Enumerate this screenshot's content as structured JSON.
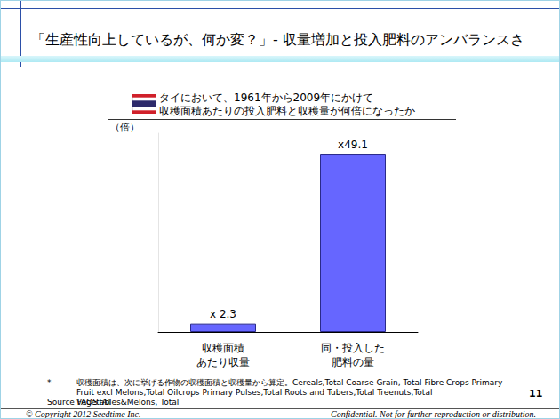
{
  "slide": {
    "title": "「生産性向上しているが、何か変？」- 収量増加と投入肥料のアンバランスさ",
    "footnote_mark": "*",
    "footnote": "収穫面積は、次に挙げる作物の収穫面積と収穫量から算定。Cereals,Total Coarse Grain, Total Fibre Crops Primary Fruit excl Melons,Total Oilcrops Primary Pulses,Total Roots and Tubers,Total Treenuts,Total Vegetables&Melons, Total",
    "source": "Source FAOSTAT",
    "page_number": "11",
    "copyright": "© Copyright 2012 Seedtime Inc.",
    "confidential": "Confidential. Not for further reproduction or distribution."
  },
  "chart_data": {
    "type": "bar",
    "title": "タイにおいて、1961年から2009年にかけて\n収穫面積あたりの投入肥料と収穫量が何倍になったか",
    "ylabel": "（倍）",
    "categories": [
      "収穫面積\nあたり収量",
      "同・投入した\n肥料の量"
    ],
    "values": [
      2.3,
      49.1
    ],
    "value_labels": [
      "x 2.3",
      "x49.1"
    ],
    "color": "#6666ff",
    "ylim": [
      0,
      55
    ],
    "data_labels": true,
    "tick_labels": "x",
    "grid": false
  }
}
